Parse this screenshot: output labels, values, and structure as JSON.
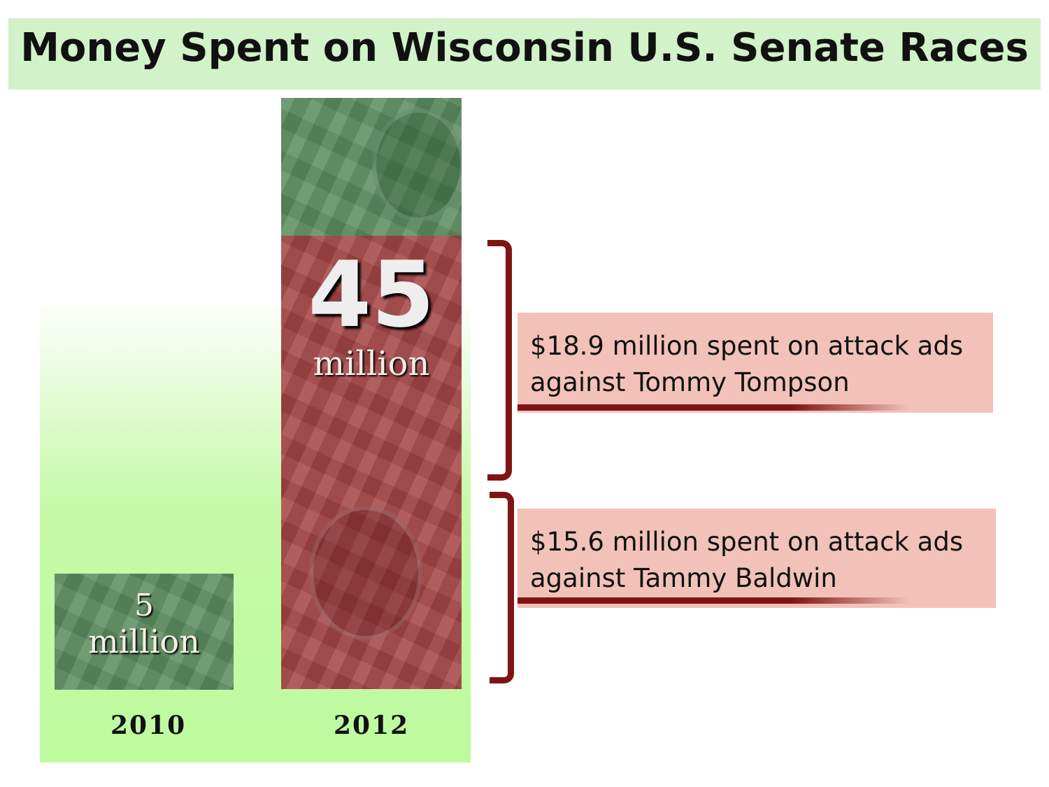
{
  "chart_data": {
    "type": "bar",
    "title": "Money Spent on Wisconsin U.S. Senate Races",
    "categories": [
      "2010",
      "2012"
    ],
    "values": [
      5,
      45
    ],
    "value_labels": [
      {
        "number": "5",
        "unit": "million"
      },
      {
        "number": "45",
        "unit": "million"
      }
    ],
    "unit": "million dollars",
    "xlabel": "",
    "ylabel": "",
    "breakdown_2012": [
      {
        "amount": 18.9,
        "text_line1": "$18.9 million spent on attack ads",
        "text_line2": "against Tommy Tompson"
      },
      {
        "amount": 15.6,
        "text_line1": "$15.6 million spent on attack ads",
        "text_line2": "against Tammy Baldwin"
      }
    ]
  },
  "colors": {
    "title_bg": "#d2f2c9",
    "bar_green": "#5c8d5f",
    "bar_red": "#a44545",
    "bracket": "#7f1414",
    "callout_bg": "#f2c2b8",
    "panel_bg": "#c6f9a9"
  }
}
